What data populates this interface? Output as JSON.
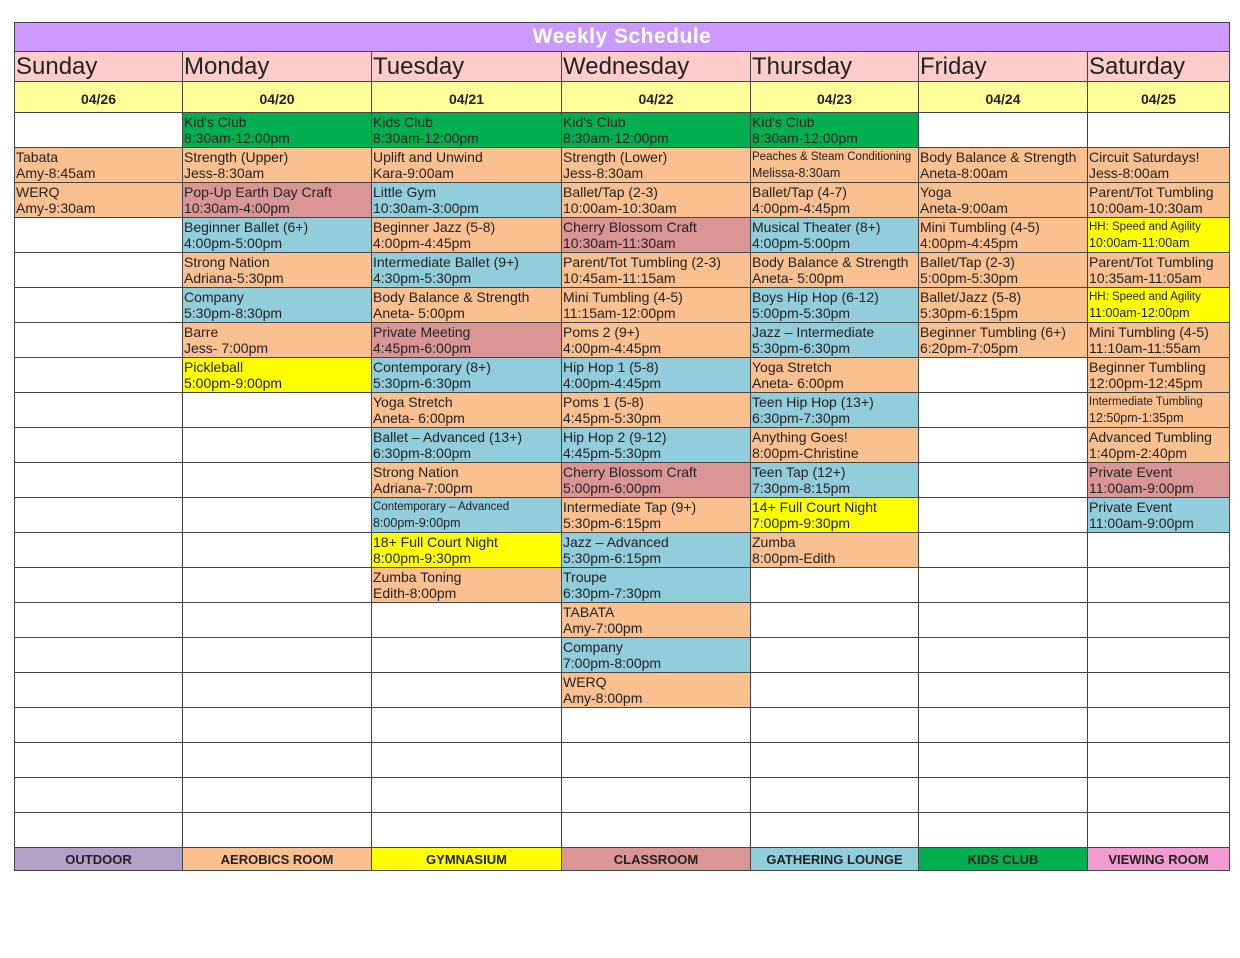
{
  "title": "Weekly Schedule",
  "rooms": {
    "outdoor": {
      "label": "OUTDOOR",
      "color": "#b1a0c7"
    },
    "aerobics": {
      "label": "AEROBICS ROOM",
      "color": "#fac090"
    },
    "gym": {
      "label": "GYMNASIUM",
      "color": "#ffff00"
    },
    "classroom": {
      "label": "CLASSROOM",
      "color": "#da9694"
    },
    "lounge": {
      "label": "GATHERING LOUNGE",
      "color": "#92cddc"
    },
    "kids": {
      "label": "KIDS CLUB",
      "color": "#00b050"
    },
    "viewing": {
      "label": "VIEWING ROOM",
      "color": "#f29bd0"
    }
  },
  "legend_order": [
    "outdoor",
    "aerobics",
    "gym",
    "classroom",
    "lounge",
    "kids",
    "viewing"
  ],
  "days": [
    {
      "name": "Sunday",
      "date": "04/26",
      "events": [
        null,
        {
          "title": "Tabata",
          "detail": "Amy-8:45am",
          "room": "aerobics"
        },
        {
          "title": "WERQ",
          "detail": "Amy-9:30am",
          "room": "aerobics"
        }
      ]
    },
    {
      "name": "Monday",
      "date": "04/20",
      "events": [
        {
          "title": "Kid's Club",
          "detail": "8:30am-12:00pm",
          "room": "kids"
        },
        {
          "title": "Strength (Upper)",
          "detail": "Jess-8:30am",
          "room": "aerobics"
        },
        {
          "title": "Pop-Up Earth Day Craft",
          "detail": "10:30am-4:00pm",
          "room": "classroom"
        },
        {
          "title": "Beginner Ballet (6+)",
          "detail": "4:00pm-5:00pm",
          "room": "lounge"
        },
        {
          "title": "Strong Nation",
          "detail": "Adriana-5:30pm",
          "room": "aerobics"
        },
        {
          "title": "Company",
          "detail": "5:30pm-8:30pm",
          "room": "lounge"
        },
        {
          "title": "Barre",
          "detail": "Jess- 7:00pm",
          "room": "aerobics"
        },
        {
          "title": "Pickleball",
          "detail": "5:00pm-9:00pm",
          "room": "gym"
        }
      ]
    },
    {
      "name": "Tuesday",
      "date": "04/21",
      "events": [
        {
          "title": "Kids Club",
          "detail": "8:30am-12:00pm",
          "room": "kids"
        },
        {
          "title": "Uplift and Unwind",
          "detail": "Kara-9:00am",
          "room": "aerobics"
        },
        {
          "title": "Little Gym",
          "detail": "10:30am-3:00pm",
          "room": "lounge"
        },
        {
          "title": "Beginner Jazz (5-8)",
          "detail": "4:00pm-4:45pm",
          "room": "aerobics"
        },
        {
          "title": "Intermediate Ballet (9+)",
          "detail": "4:30pm-5:30pm",
          "room": "lounge"
        },
        {
          "title": "Body Balance & Strength",
          "detail": "Aneta- 5:00pm",
          "room": "aerobics"
        },
        {
          "title": "Private Meeting",
          "detail": "4:45pm-6:00pm",
          "room": "classroom"
        },
        {
          "title": "Contemporary (8+)",
          "detail": "5:30pm-6:30pm",
          "room": "lounge"
        },
        {
          "title": "Yoga Stretch",
          "detail": "Aneta- 6:00pm",
          "room": "aerobics"
        },
        {
          "title": "Ballet – Advanced (13+)",
          "detail": "6:30pm-8:00pm",
          "room": "lounge"
        },
        {
          "title": "Strong Nation",
          "detail": "Adriana-7:00pm",
          "room": "aerobics"
        },
        {
          "title": "Contemporary – Advanced",
          "detail": "8:00pm-9:00pm",
          "room": "lounge",
          "small": true
        },
        {
          "title": "18+ Full Court Night",
          "detail": "8:00pm-9:30pm",
          "room": "gym"
        },
        {
          "title": "Zumba Toning",
          "detail": "Edith-8:00pm",
          "room": "aerobics"
        }
      ]
    },
    {
      "name": "Wednesday",
      "date": "04/22",
      "events": [
        {
          "title": "Kid's Club",
          "detail": "8:30am-12:00pm",
          "room": "kids"
        },
        {
          "title": "Strength (Lower)",
          "detail": "Jess-8:30am",
          "room": "aerobics"
        },
        {
          "title": "Ballet/Tap (2-3)",
          "detail": "10:00am-10:30am",
          "room": "aerobics"
        },
        {
          "title": "Cherry Blossom Craft",
          "detail": "10:30am-11:30am",
          "room": "classroom"
        },
        {
          "title": "Parent/Tot Tumbling (2-3)",
          "detail": "10:45am-11:15am",
          "room": "aerobics"
        },
        {
          "title": "Mini Tumbling (4-5)",
          "detail": "11:15am-12:00pm",
          "room": "aerobics"
        },
        {
          "title": "Poms 2 (9+)",
          "detail": "4:00pm-4:45pm",
          "room": "aerobics"
        },
        {
          "title": "Hip Hop 1 (5-8)",
          "detail": "4:00pm-4:45pm",
          "room": "lounge"
        },
        {
          "title": "Poms 1 (5-8)",
          "detail": "4:45pm-5:30pm",
          "room": "aerobics"
        },
        {
          "title": "Hip Hop 2 (9-12)",
          "detail": "4:45pm-5:30pm",
          "room": "lounge"
        },
        {
          "title": "Cherry Blossom Craft",
          "detail": "5:00pm-6:00pm",
          "room": "classroom"
        },
        {
          "title": "Intermediate Tap (9+)",
          "detail": "5:30pm-6:15pm",
          "room": "aerobics"
        },
        {
          "title": "Jazz – Advanced",
          "detail": "5:30pm-6:15pm",
          "room": "lounge"
        },
        {
          "title": "Troupe",
          "detail": "6:30pm-7:30pm",
          "room": "lounge"
        },
        {
          "title": "TABATA",
          "detail": "Amy-7:00pm",
          "room": "aerobics"
        },
        {
          "title": "Company",
          "detail": "7:00pm-8:00pm",
          "room": "lounge"
        },
        {
          "title": "WERQ",
          "detail": "Amy-8:00pm",
          "room": "aerobics"
        }
      ]
    },
    {
      "name": "Thursday",
      "date": "04/23",
      "events": [
        {
          "title": "Kid's Club",
          "detail": "8:30am-12:00pm",
          "room": "kids"
        },
        {
          "title": "Peaches & Steam Conditioning",
          "detail": "Melissa-8:30am",
          "room": "aerobics",
          "small": true
        },
        {
          "title": "Ballet/Tap (4-7)",
          "detail": "4:00pm-4:45pm",
          "room": "aerobics"
        },
        {
          "title": "Musical Theater (8+)",
          "detail": "4:00pm-5:00pm",
          "room": "lounge"
        },
        {
          "title": "Body Balance & Strength",
          "detail": "Aneta- 5:00pm",
          "room": "aerobics"
        },
        {
          "title": "Boys Hip Hop (6-12)",
          "detail": "5:00pm-5:30pm",
          "room": "lounge"
        },
        {
          "title": "Jazz – Intermediate",
          "detail": "5:30pm-6:30pm",
          "room": "lounge"
        },
        {
          "title": "Yoga Stretch",
          "detail": "Aneta- 6:00pm",
          "room": "aerobics"
        },
        {
          "title": "Teen Hip Hop (13+)",
          "detail": "6:30pm-7:30pm",
          "room": "lounge"
        },
        {
          "title": "Anything Goes!",
          "detail": "8:00pm-Christine",
          "room": "aerobics"
        },
        {
          "title": "Teen Tap (12+)",
          "detail": "7:30pm-8:15pm",
          "room": "lounge"
        },
        {
          "title": "14+ Full Court Night",
          "detail": "7:00pm-9:30pm",
          "room": "gym"
        },
        {
          "title": "Zumba",
          "detail": "8:00pm-Edith",
          "room": "aerobics"
        }
      ]
    },
    {
      "name": "Friday",
      "date": "04/24",
      "events": [
        null,
        {
          "title": "Body Balance & Strength",
          "detail": "Aneta-8:00am",
          "room": "aerobics"
        },
        {
          "title": "Yoga",
          "detail": "Aneta-9:00am",
          "room": "aerobics"
        },
        {
          "title": "Mini Tumbling (4-5)",
          "detail": "4:00pm-4:45pm",
          "room": "aerobics"
        },
        {
          "title": "Ballet/Tap (2-3)",
          "detail": "5:00pm-5:30pm",
          "room": "aerobics"
        },
        {
          "title": "Ballet/Jazz (5-8)",
          "detail": "5:30pm-6:15pm",
          "room": "aerobics"
        },
        {
          "title": "Beginner Tumbling (6+)",
          "detail": "6:20pm-7:05pm",
          "room": "aerobics"
        }
      ]
    },
    {
      "name": "Saturday",
      "date": "04/25",
      "events": [
        null,
        {
          "title": "Circuit Saturdays!",
          "detail": "Jess-8:00am",
          "room": "aerobics"
        },
        {
          "title": "Parent/Tot Tumbling",
          "detail": "10:00am-10:30am",
          "room": "aerobics"
        },
        {
          "title": "HH: Speed and Agility",
          "detail": "10:00am-11:00am",
          "room": "gym",
          "small": true
        },
        {
          "title": "Parent/Tot Tumbling",
          "detail": "10:35am-11:05am",
          "room": "aerobics"
        },
        {
          "title": "HH: Speed and Agility",
          "detail": "11:00am-12:00pm",
          "room": "gym",
          "small": true
        },
        {
          "title": "Mini Tumbling (4-5)",
          "detail": "11:10am-11:55am",
          "room": "aerobics"
        },
        {
          "title": "Beginner Tumbling",
          "detail": "12:00pm-12:45pm",
          "room": "aerobics"
        },
        {
          "title": "Intermediate Tumbling",
          "detail": "12:50pm-1:35pm",
          "room": "aerobics",
          "small": true
        },
        {
          "title": "Advanced Tumbling",
          "detail": "1:40pm-2:40pm",
          "room": "aerobics"
        },
        {
          "title": "Private Event",
          "detail": "11:00am-9:00pm",
          "room": "classroom"
        },
        {
          "title": "Private Event",
          "detail": "11:00am-9:00pm",
          "room": "lounge"
        }
      ]
    }
  ]
}
